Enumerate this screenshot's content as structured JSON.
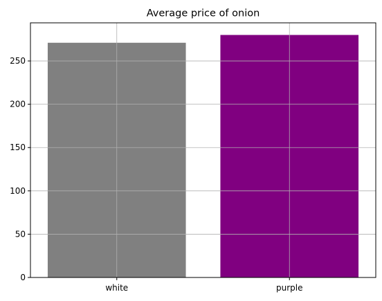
{
  "chart_data": {
    "type": "bar",
    "title": "Average price of onion",
    "xlabel": "",
    "ylabel": "",
    "categories": [
      "white",
      "purple"
    ],
    "values": [
      271,
      280
    ],
    "colors": [
      "#808080",
      "#800080"
    ],
    "ylim": [
      0,
      294
    ],
    "yticks": [
      0,
      50,
      100,
      150,
      200,
      250
    ],
    "grid": true,
    "legend": "none"
  }
}
